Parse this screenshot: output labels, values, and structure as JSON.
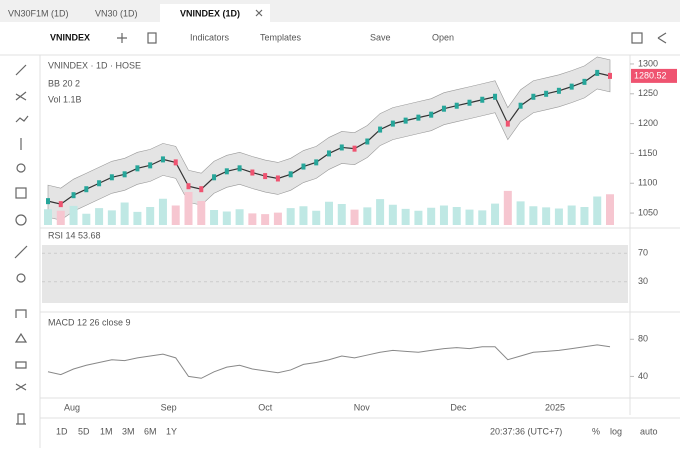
{
  "tabs": [
    "VN30F1M (1D)",
    "VN30 (1D)",
    "VNINDEX (1D)"
  ],
  "toolbar": {
    "symbol": "VNINDEX",
    "indicators": "Indicators",
    "templates": "Templates",
    "save": "Save",
    "open": "Open"
  },
  "legend": {
    "main": "VNINDEX · 1D · HOSE",
    "indicator": "BB 20 2",
    "volume": "Vol 1.1B"
  },
  "main_chart": {
    "closes": [
      1070,
      1065,
      1080,
      1090,
      1100,
      1110,
      1115,
      1125,
      1130,
      1140,
      1135,
      1095,
      1090,
      1110,
      1120,
      1125,
      1118,
      1112,
      1108,
      1115,
      1128,
      1135,
      1150,
      1160,
      1158,
      1170,
      1190,
      1200,
      1205,
      1210,
      1215,
      1225,
      1230,
      1235,
      1240,
      1245,
      1200,
      1230,
      1245,
      1250,
      1255,
      1262,
      1270,
      1285,
      1280
    ],
    "volumes": [
      420,
      380,
      510,
      300,
      450,
      390,
      600,
      350,
      480,
      700,
      520,
      880,
      640,
      400,
      360,
      420,
      310,
      290,
      330,
      450,
      500,
      380,
      620,
      560,
      410,
      470,
      690,
      540,
      430,
      380,
      460,
      520,
      480,
      410,
      390,
      570,
      910,
      630,
      500,
      470,
      440,
      520,
      480,
      760,
      820
    ],
    "ylim": [
      1030,
      1310
    ],
    "yticks": [
      1300,
      1250,
      1200,
      1150,
      1100,
      1050
    ],
    "vlim": [
      0,
      1200
    ],
    "last_price_label": "1280.52",
    "color": "#333333"
  },
  "rsi": {
    "title": "RSI 14 53.68",
    "ylim": [
      0,
      100
    ],
    "yticks": [
      70,
      30
    ]
  },
  "osc": {
    "title": "MACD 12 26 close 9",
    "values": [
      45,
      42,
      48,
      52,
      55,
      58,
      57,
      60,
      62,
      64,
      60,
      40,
      38,
      45,
      50,
      52,
      48,
      46,
      44,
      47,
      53,
      55,
      58,
      62,
      60,
      63,
      66,
      68,
      67,
      66,
      68,
      70,
      71,
      70,
      72,
      72,
      58,
      62,
      66,
      67,
      68,
      70,
      72,
      74,
      72
    ],
    "ylim": [
      20,
      90
    ],
    "yticks": [
      80,
      40
    ]
  },
  "x_labels": [
    "Aug",
    "Sep",
    "Oct",
    "Nov",
    "Dec",
    "2025"
  ],
  "ranges": [
    "1D",
    "5D",
    "1M",
    "3M",
    "6M",
    "1Y"
  ],
  "status": {
    "time": "20:37:36 (UTC+7)",
    "percent": "%",
    "log": "log",
    "auto": "auto"
  }
}
